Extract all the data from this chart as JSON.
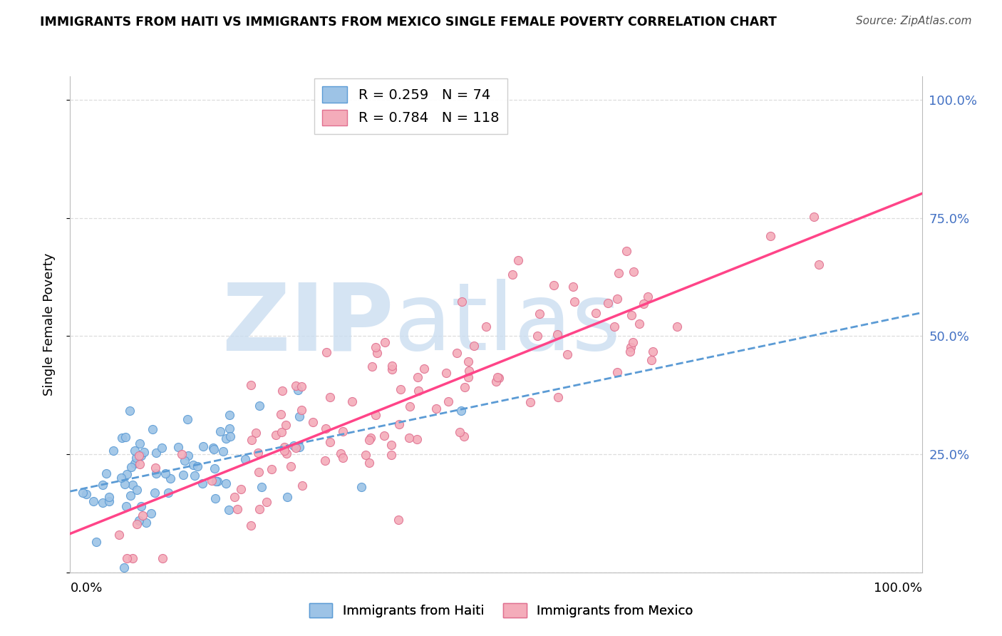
{
  "title": "IMMIGRANTS FROM HAITI VS IMMIGRANTS FROM MEXICO SINGLE FEMALE POVERTY CORRELATION CHART",
  "source": "Source: ZipAtlas.com",
  "ylabel": "Single Female Poverty",
  "legend_label1": "Immigrants from Haiti",
  "legend_label2": "Immigrants from Mexico",
  "R_haiti": 0.259,
  "N_haiti": 74,
  "R_mexico": 0.784,
  "N_mexico": 118,
  "color_haiti_fill": "#9DC3E6",
  "color_haiti_edge": "#5B9BD5",
  "color_mexico_fill": "#F4ACBA",
  "color_mexico_edge": "#E07090",
  "color_haiti_line": "#5B9BD5",
  "color_mexico_line": "#FF4488",
  "watermark_color": "#C8DCF0",
  "xmin": 0.0,
  "xmax": 1.0,
  "ymin": 0.0,
  "ymax": 1.05,
  "ytick_positions": [
    0.0,
    0.25,
    0.5,
    0.75,
    1.0
  ],
  "ytick_labels": [
    "",
    "25.0%",
    "50.0%",
    "75.0%",
    "100.0%"
  ],
  "grid_color": "#DDDDDD",
  "axis_color": "#BBBBBB"
}
